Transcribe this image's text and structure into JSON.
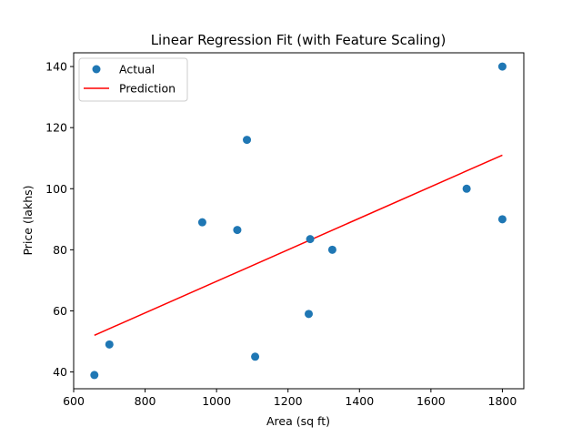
{
  "chart_data": {
    "type": "scatter",
    "title": "Linear Regression Fit (with Feature Scaling)",
    "xlabel": "Area (sq ft)",
    "ylabel": "Price (lakhs)",
    "xlim": [
      600,
      1860
    ],
    "ylim": [
      34.5,
      144.5
    ],
    "xticks": [
      600,
      800,
      1000,
      1200,
      1400,
      1600,
      1800
    ],
    "yticks": [
      40,
      60,
      80,
      100,
      120,
      140
    ],
    "grid": false,
    "legend_position": "top-left",
    "series": [
      {
        "name": "Actual",
        "kind": "scatter",
        "color": "#1f77b4",
        "points": [
          {
            "x": 658,
            "y": 39
          },
          {
            "x": 700,
            "y": 49
          },
          {
            "x": 960,
            "y": 89
          },
          {
            "x": 1058,
            "y": 86.5
          },
          {
            "x": 1085,
            "y": 116
          },
          {
            "x": 1108,
            "y": 45
          },
          {
            "x": 1258,
            "y": 59
          },
          {
            "x": 1262,
            "y": 83.5
          },
          {
            "x": 1324,
            "y": 80
          },
          {
            "x": 1700,
            "y": 100
          },
          {
            "x": 1800,
            "y": 90
          },
          {
            "x": 1800,
            "y": 140
          }
        ]
      },
      {
        "name": "Prediction",
        "kind": "line",
        "color": "#ff0000",
        "points": [
          {
            "x": 658,
            "y": 52
          },
          {
            "x": 1800,
            "y": 111
          }
        ]
      }
    ]
  }
}
